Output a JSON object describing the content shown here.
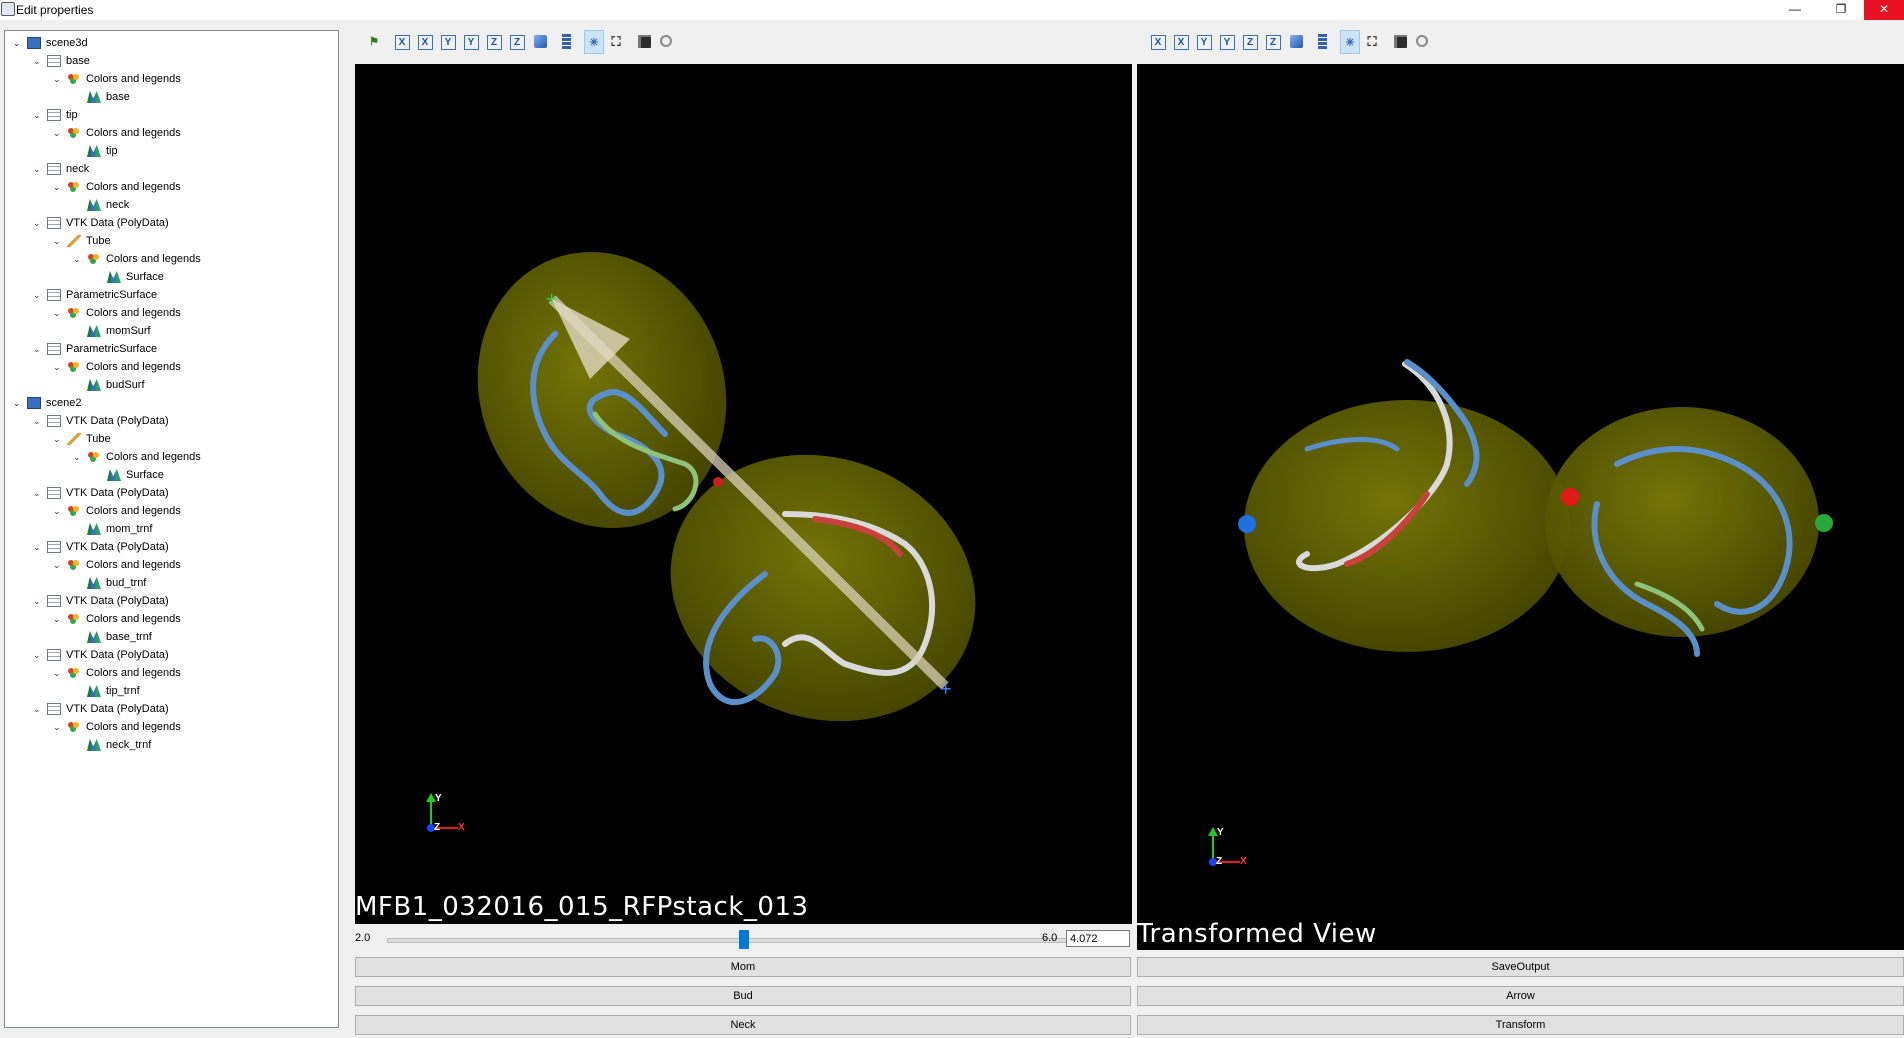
{
  "window": {
    "title": "Edit properties",
    "controls": {
      "minimize": "—",
      "restore": "❐",
      "close": "✕"
    }
  },
  "tree": {
    "items": [
      {
        "label": "scene3d",
        "icon": "scene-icon",
        "level": 0
      },
      {
        "label": "base",
        "icon": "table-icon",
        "level": 1
      },
      {
        "label": "Colors and legends",
        "icon": "colors-legends-icon",
        "level": 2
      },
      {
        "label": "base",
        "icon": "glyph-icon",
        "level": 3
      },
      {
        "label": "tip",
        "icon": "table-icon",
        "level": 1
      },
      {
        "label": "Colors and legends",
        "icon": "colors-legends-icon",
        "level": 2
      },
      {
        "label": "tip",
        "icon": "glyph-icon",
        "level": 3
      },
      {
        "label": "neck",
        "icon": "table-icon",
        "level": 1
      },
      {
        "label": "Colors and legends",
        "icon": "colors-legends-icon",
        "level": 2
      },
      {
        "label": "neck",
        "icon": "glyph-icon",
        "level": 3
      },
      {
        "label": "VTK Data (PolyData)",
        "icon": "table-icon",
        "level": 1
      },
      {
        "label": "Tube",
        "icon": "tube-icon",
        "level": 2
      },
      {
        "label": "Colors and legends",
        "icon": "colors-legends-icon",
        "level": 3
      },
      {
        "label": "Surface",
        "icon": "glyph-icon",
        "level": 4
      },
      {
        "label": "ParametricSurface",
        "icon": "table-icon",
        "level": 1
      },
      {
        "label": "Colors and legends",
        "icon": "colors-legends-icon",
        "level": 2
      },
      {
        "label": "momSurf",
        "icon": "glyph-icon",
        "level": 3
      },
      {
        "label": "ParametricSurface",
        "icon": "table-icon",
        "level": 1
      },
      {
        "label": "Colors and legends",
        "icon": "colors-legends-icon",
        "level": 2
      },
      {
        "label": "budSurf",
        "icon": "glyph-icon",
        "level": 3
      },
      {
        "label": "scene2",
        "icon": "scene-icon",
        "level": 0
      },
      {
        "label": "VTK Data (PolyData)",
        "icon": "table-icon",
        "level": 1
      },
      {
        "label": "Tube",
        "icon": "tube-icon",
        "level": 2
      },
      {
        "label": "Colors and legends",
        "icon": "colors-legends-icon",
        "level": 3
      },
      {
        "label": "Surface",
        "icon": "glyph-icon",
        "level": 4
      },
      {
        "label": "VTK Data (PolyData)",
        "icon": "table-icon",
        "level": 1
      },
      {
        "label": "Colors and legends",
        "icon": "colors-legends-icon",
        "level": 2
      },
      {
        "label": "mom_trnf",
        "icon": "glyph-icon",
        "level": 3
      },
      {
        "label": "VTK Data (PolyData)",
        "icon": "table-icon",
        "level": 1
      },
      {
        "label": "Colors and legends",
        "icon": "colors-legends-icon",
        "level": 2
      },
      {
        "label": "bud_trnf",
        "icon": "glyph-icon",
        "level": 3
      },
      {
        "label": "VTK Data (PolyData)",
        "icon": "table-icon",
        "level": 1
      },
      {
        "label": "Colors and legends",
        "icon": "colors-legends-icon",
        "level": 2
      },
      {
        "label": "base_trnf",
        "icon": "glyph-icon",
        "level": 3
      },
      {
        "label": "VTK Data (PolyData)",
        "icon": "table-icon",
        "level": 1
      },
      {
        "label": "Colors and legends",
        "icon": "colors-legends-icon",
        "level": 2
      },
      {
        "label": "tip_trnf",
        "icon": "glyph-icon",
        "level": 3
      },
      {
        "label": "VTK Data (PolyData)",
        "icon": "table-icon",
        "level": 1
      },
      {
        "label": "Colors and legends",
        "icon": "colors-legends-icon",
        "level": 2
      },
      {
        "label": "neck_trnf",
        "icon": "glyph-icon",
        "level": 3
      }
    ]
  },
  "toolbar": {
    "x_label": "X",
    "y_label": "Y",
    "z_label": "Z"
  },
  "viewports": {
    "left": {
      "caption": "MFB1_032016_015_RFPstack_013"
    },
    "right": {
      "caption": "Transformed View"
    }
  },
  "axes": {
    "x": "X",
    "y": "Y",
    "z": "Z"
  },
  "slider": {
    "min": "2.0",
    "max": "6.0",
    "value": "4.072",
    "fraction": 0.518
  },
  "buttons": {
    "mom": "Mom",
    "bud": "Bud",
    "neck": "Neck",
    "save_output": "SaveOutput",
    "arrow": "Arrow",
    "transform": "Transform"
  },
  "colors": {
    "accent": "#0078d7",
    "close": "#e81123",
    "ellipsoid": "#6b6b00"
  }
}
